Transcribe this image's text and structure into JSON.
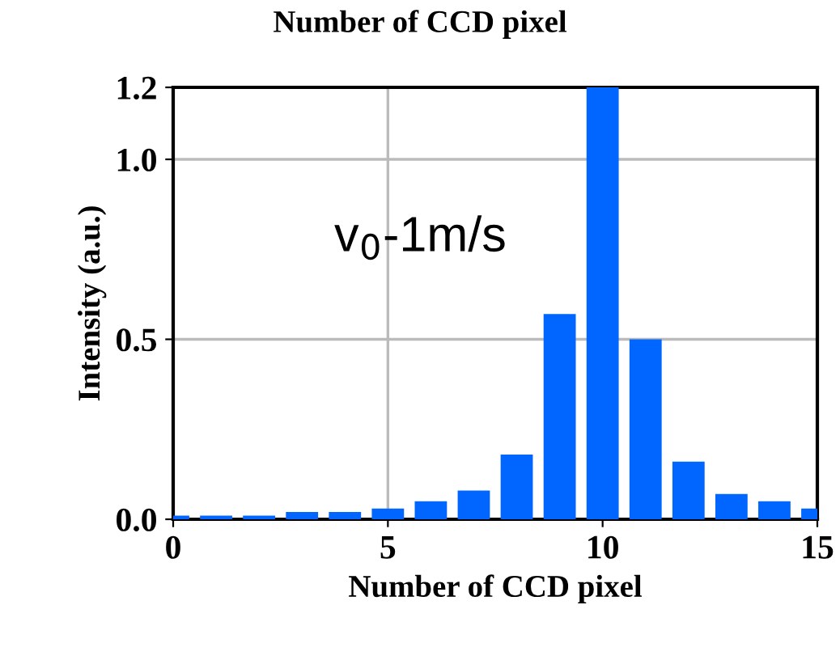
{
  "chart_data": {
    "type": "bar",
    "title": "Number of CCD pixel",
    "xlabel": "Number of CCD pixel",
    "ylabel": "Intensity (a.u.)",
    "annotations": [
      "v$_{0}$-1m/s"
    ],
    "x": [
      0,
      1,
      2,
      3,
      4,
      5,
      6,
      7,
      8,
      9,
      10,
      11,
      12,
      13,
      14,
      15
    ],
    "values": [
      0.01,
      0.01,
      0.01,
      0.02,
      0.02,
      0.03,
      0.05,
      0.08,
      0.18,
      0.57,
      1.2,
      0.5,
      0.16,
      0.07,
      0.05,
      0.03
    ],
    "color": "#0066ff",
    "xlim": [
      0,
      15
    ],
    "ylim": [
      0,
      1.2
    ],
    "xticks": [
      0,
      5,
      10,
      15
    ],
    "yticks": [
      {
        "value": 0,
        "label": "0.0"
      },
      0.5,
      {
        "value": 1.0,
        "label": "1.0"
      },
      1.2
    ],
    "grid": true,
    "legend": false
  }
}
